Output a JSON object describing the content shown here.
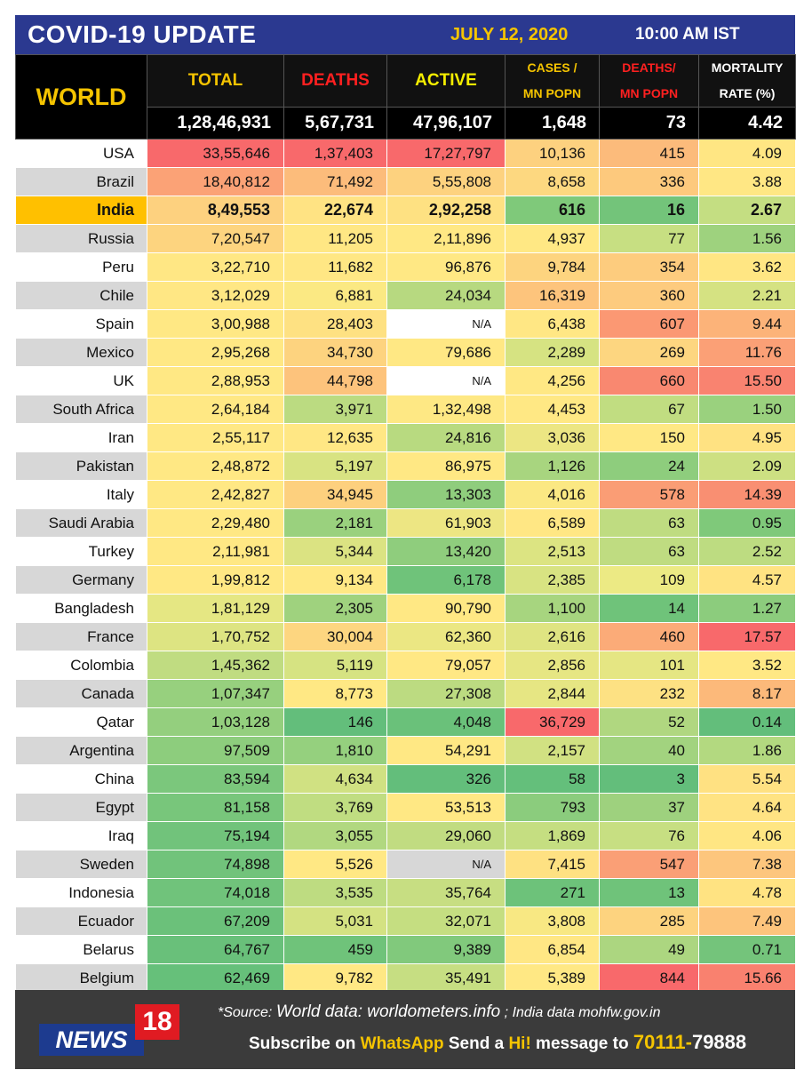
{
  "header": {
    "title": "COVID-19 UPDATE",
    "date": "JULY 12, 2020",
    "time": "10:00 AM IST"
  },
  "table_header": {
    "world_label": "WORLD",
    "col_total": "TOTAL",
    "col_deaths": "DEATHS",
    "col_active": "ACTIVE",
    "col_cases_mn_1": "CASES /",
    "col_cases_mn_2": "MN POPN",
    "col_deaths_mn_1": "DEATHS/",
    "col_deaths_mn_2": "MN POPN",
    "col_mort_1": "MORTALITY",
    "col_mort_2": "RATE (%)",
    "world_total": "1,28,46,931",
    "world_deaths": "5,67,731",
    "world_active": "47,96,107",
    "world_cases_mn": "1,648",
    "world_deaths_mn": "73",
    "world_mortality": "4.42"
  },
  "colors": {
    "header_blue": "#2b3990",
    "accent_yellow": "#f5c400",
    "deaths_red": "#ff2020",
    "india_orange": "#ffc000",
    "footer_gray": "#3b3b3b"
  },
  "chart_data": {
    "type": "table",
    "columns": [
      "TOTAL",
      "DEATHS",
      "ACTIVE",
      "CASES / MN POPN",
      "DEATHS/ MN POPN",
      "MORTALITY RATE (%)"
    ],
    "rows": [
      {
        "country": "USA",
        "total": "33,55,646",
        "deaths": "1,37,403",
        "active": "17,27,797",
        "cases_mn": "10,136",
        "deaths_mn": "415",
        "mortality": "4.09",
        "colors": [
          "#f8696b",
          "#f8696b",
          "#f8696b",
          "#fdd17f",
          "#fcbb7b",
          "#ffe683"
        ]
      },
      {
        "country": "Brazil",
        "total": "18,40,812",
        "deaths": "71,492",
        "active": "5,55,808",
        "cases_mn": "8,658",
        "deaths_mn": "336",
        "mortality": "3.88",
        "colors": [
          "#fba276",
          "#fcbc7b",
          "#fdd27f",
          "#fdd880",
          "#fdc97d",
          "#ffe784"
        ]
      },
      {
        "country": "India",
        "total": "8,49,553",
        "deaths": "22,674",
        "active": "2,92,258",
        "cases_mn": "616",
        "deaths_mn": "16",
        "mortality": "2.67",
        "colors": [
          "#fdd17f",
          "#ffe383",
          "#fee182",
          "#7fc97a",
          "#73c47a",
          "#c4de82"
        ]
      },
      {
        "country": "Russia",
        "total": "7,20,547",
        "deaths": "11,205",
        "active": "2,11,896",
        "cases_mn": "4,937",
        "deaths_mn": "77",
        "mortality": "1.56",
        "colors": [
          "#fdd47f",
          "#ffe784",
          "#ffe884",
          "#ffe884",
          "#c7df82",
          "#9ed27e"
        ]
      },
      {
        "country": "Peru",
        "total": "3,22,710",
        "deaths": "11,682",
        "active": "96,876",
        "cases_mn": "9,784",
        "deaths_mn": "354",
        "mortality": "3.62",
        "colors": [
          "#ffe784",
          "#ffe784",
          "#ffe884",
          "#fdd47f",
          "#fdcc7e",
          "#ffe683"
        ]
      },
      {
        "country": "Chile",
        "total": "3,12,029",
        "deaths": "6,881",
        "active": "24,034",
        "cases_mn": "16,319",
        "deaths_mn": "360",
        "mortality": "2.21",
        "colors": [
          "#ffe784",
          "#fbe983",
          "#b7d980",
          "#fdc47c",
          "#fdcb7e",
          "#d5e282"
        ]
      },
      {
        "country": "Spain",
        "total": "3,00,988",
        "deaths": "28,403",
        "active": "N/A",
        "cases_mn": "6,438",
        "deaths_mn": "607",
        "mortality": "9.44",
        "colors": [
          "#ffe884",
          "#fee182",
          "#ffffff",
          "#ffe784",
          "#fb9873",
          "#fcb379"
        ]
      },
      {
        "country": "Mexico",
        "total": "2,95,268",
        "deaths": "34,730",
        "active": "79,686",
        "cases_mn": "2,289",
        "deaths_mn": "269",
        "mortality": "11.76",
        "colors": [
          "#ffe884",
          "#fdd37f",
          "#ffe884",
          "#d6e382",
          "#fdd680",
          "#fba076"
        ]
      },
      {
        "country": "UK",
        "total": "2,88,953",
        "deaths": "44,798",
        "active": "N/A",
        "cases_mn": "4,256",
        "deaths_mn": "660",
        "mortality": "15.50",
        "colors": [
          "#ffe884",
          "#fdc37c",
          "#ffffff",
          "#ffe884",
          "#f98870",
          "#f98370"
        ]
      },
      {
        "country": "South Africa",
        "total": "2,64,184",
        "deaths": "3,971",
        "active": "1,32,498",
        "cases_mn": "4,453",
        "deaths_mn": "67",
        "mortality": "1.50",
        "colors": [
          "#ffe884",
          "#bbdb81",
          "#fee884",
          "#ffe884",
          "#c1dd81",
          "#9ad17e"
        ]
      },
      {
        "country": "Iran",
        "total": "2,55,117",
        "deaths": "12,635",
        "active": "24,816",
        "cases_mn": "3,036",
        "deaths_mn": "150",
        "mortality": "4.95",
        "colors": [
          "#ffe884",
          "#ffe784",
          "#b8da80",
          "#ece683",
          "#ffe884",
          "#ffe282"
        ]
      },
      {
        "country": "Pakistan",
        "total": "2,48,872",
        "deaths": "5,197",
        "active": "86,975",
        "cases_mn": "1,126",
        "deaths_mn": "24",
        "mortality": "2.09",
        "colors": [
          "#ffe884",
          "#d8e382",
          "#ffe884",
          "#a8d57f",
          "#8ecd7d",
          "#cde082"
        ]
      },
      {
        "country": "Italy",
        "total": "2,42,827",
        "deaths": "34,945",
        "active": "13,303",
        "cases_mn": "4,016",
        "deaths_mn": "578",
        "mortality": "14.39",
        "colors": [
          "#ffe884",
          "#fdd07e",
          "#8fcd7d",
          "#fbe883",
          "#fa9d75",
          "#f98f72"
        ]
      },
      {
        "country": "Saudi Arabia",
        "total": "2,29,480",
        "deaths": "2,181",
        "active": "61,903",
        "cases_mn": "6,589",
        "deaths_mn": "63",
        "mortality": "0.95",
        "colors": [
          "#ffe884",
          "#9ad17e",
          "#ede683",
          "#ffe784",
          "#bfdc81",
          "#7fc97a"
        ]
      },
      {
        "country": "Turkey",
        "total": "2,11,981",
        "deaths": "5,344",
        "active": "13,420",
        "cases_mn": "2,513",
        "deaths_mn": "63",
        "mortality": "2.52",
        "colors": [
          "#ffe884",
          "#dbe382",
          "#8fcd7d",
          "#dce482",
          "#bfdc81",
          "#bddc81"
        ]
      },
      {
        "country": "Germany",
        "total": "1,99,812",
        "deaths": "9,134",
        "active": "6,178",
        "cases_mn": "2,385",
        "deaths_mn": "109",
        "mortality": "4.57",
        "colors": [
          "#ffe884",
          "#ffe884",
          "#6fc37a",
          "#d8e382",
          "#ecea84",
          "#ffe382"
        ]
      },
      {
        "country": "Bangladesh",
        "total": "1,81,129",
        "deaths": "2,305",
        "active": "90,790",
        "cases_mn": "1,100",
        "deaths_mn": "14",
        "mortality": "1.27",
        "colors": [
          "#e5e783",
          "#9fd27e",
          "#ffe884",
          "#a7d57f",
          "#6fc37a",
          "#8ccc7d"
        ]
      },
      {
        "country": "France",
        "total": "1,70,752",
        "deaths": "30,004",
        "active": "62,360",
        "cases_mn": "2,616",
        "deaths_mn": "460",
        "mortality": "17.57",
        "colors": [
          "#dde482",
          "#fdd680",
          "#ebe783",
          "#dfe482",
          "#fbab78",
          "#f8696b"
        ]
      },
      {
        "country": "Colombia",
        "total": "1,45,362",
        "deaths": "5,119",
        "active": "79,057",
        "cases_mn": "2,856",
        "deaths_mn": "101",
        "mortality": "3.52",
        "colors": [
          "#c0dc81",
          "#d6e382",
          "#ffe884",
          "#e6e683",
          "#e5e683",
          "#ffe884"
        ]
      },
      {
        "country": "Canada",
        "total": "1,07,347",
        "deaths": "8,773",
        "active": "27,308",
        "cases_mn": "2,844",
        "deaths_mn": "232",
        "mortality": "8.17",
        "colors": [
          "#97d07e",
          "#ffe884",
          "#bcdb81",
          "#e6e683",
          "#fde183",
          "#fcb97a"
        ]
      },
      {
        "country": "Qatar",
        "total": "1,03,128",
        "deaths": "146",
        "active": "4,048",
        "cases_mn": "36,729",
        "deaths_mn": "52",
        "mortality": "0.14",
        "colors": [
          "#94cf7e",
          "#63be7b",
          "#6ac17a",
          "#f8696b",
          "#b0d780",
          "#63be7b"
        ]
      },
      {
        "country": "Argentina",
        "total": "97,509",
        "deaths": "1,810",
        "active": "54,291",
        "cases_mn": "2,157",
        "deaths_mn": "40",
        "mortality": "1.86",
        "colors": [
          "#8dcd7d",
          "#95d07e",
          "#ffe884",
          "#d1e182",
          "#a2d37f",
          "#b3d980"
        ]
      },
      {
        "country": "China",
        "total": "83,594",
        "deaths": "4,634",
        "active": "326",
        "cases_mn": "58",
        "deaths_mn": "3",
        "mortality": "5.54",
        "colors": [
          "#7bc77c",
          "#d0e182",
          "#63be7b",
          "#64bf7b",
          "#63be7b",
          "#ffe182"
        ]
      },
      {
        "country": "Egypt",
        "total": "81,158",
        "deaths": "3,769",
        "active": "53,513",
        "cases_mn": "793",
        "deaths_mn": "37",
        "mortality": "4.64",
        "colors": [
          "#78c67b",
          "#c0dd81",
          "#ffe884",
          "#8bcc7d",
          "#9ed17e",
          "#ffe383"
        ]
      },
      {
        "country": "Iraq",
        "total": "75,194",
        "deaths": "3,055",
        "active": "29,060",
        "cases_mn": "1,869",
        "deaths_mn": "76",
        "mortality": "4.06",
        "colors": [
          "#71c37b",
          "#b1d880",
          "#c1dc81",
          "#c5de81",
          "#c7df82",
          "#ffe683"
        ]
      },
      {
        "country": "Sweden",
        "total": "74,898",
        "deaths": "5,526",
        "active": "N/A",
        "cases_mn": "7,415",
        "deaths_mn": "547",
        "mortality": "7.38",
        "colors": [
          "#71c37b",
          "#ffe884",
          "#d7d7d7",
          "#fee182",
          "#fa9f76",
          "#fdc67d"
        ]
      },
      {
        "country": "Indonesia",
        "total": "74,018",
        "deaths": "3,535",
        "active": "35,764",
        "cases_mn": "271",
        "deaths_mn": "13",
        "mortality": "4.78",
        "colors": [
          "#70c37b",
          "#bedc81",
          "#c7de82",
          "#6dc27a",
          "#6fc37a",
          "#ffe382"
        ]
      },
      {
        "country": "Ecuador",
        "total": "67,209",
        "deaths": "5,031",
        "active": "32,071",
        "cases_mn": "3,808",
        "deaths_mn": "285",
        "mortality": "7.49",
        "colors": [
          "#6bc17a",
          "#d4e282",
          "#c5de81",
          "#f8e883",
          "#fdd37f",
          "#fdc47c"
        ]
      },
      {
        "country": "Belarus",
        "total": "64,767",
        "deaths": "459",
        "active": "9,389",
        "cases_mn": "6,854",
        "deaths_mn": "49",
        "mortality": "0.71",
        "colors": [
          "#69c07a",
          "#6fc37a",
          "#81c97c",
          "#ffe784",
          "#acd680",
          "#74c47b"
        ]
      },
      {
        "country": "Belgium",
        "total": "62,469",
        "deaths": "9,782",
        "active": "35,491",
        "cases_mn": "5,389",
        "deaths_mn": "844",
        "mortality": "15.66",
        "colors": [
          "#66c07a",
          "#ffe884",
          "#c6de82",
          "#ffe884",
          "#f8696b",
          "#f9816f"
        ]
      }
    ]
  },
  "footer": {
    "logo_text": "NEWS",
    "logo_number": "18",
    "source_label": "*Source:",
    "source_world": "World data: worldometers.info",
    "source_sep": " ; ",
    "source_india": "India data mohfw.gov.in",
    "sub_1": "Subscribe on ",
    "sub_whatsapp": "WhatsApp",
    "sub_2": " Send a ",
    "sub_hi": "Hi!",
    "sub_3": " message to ",
    "sub_num_a": "70111-",
    "sub_num_b": "79888"
  }
}
